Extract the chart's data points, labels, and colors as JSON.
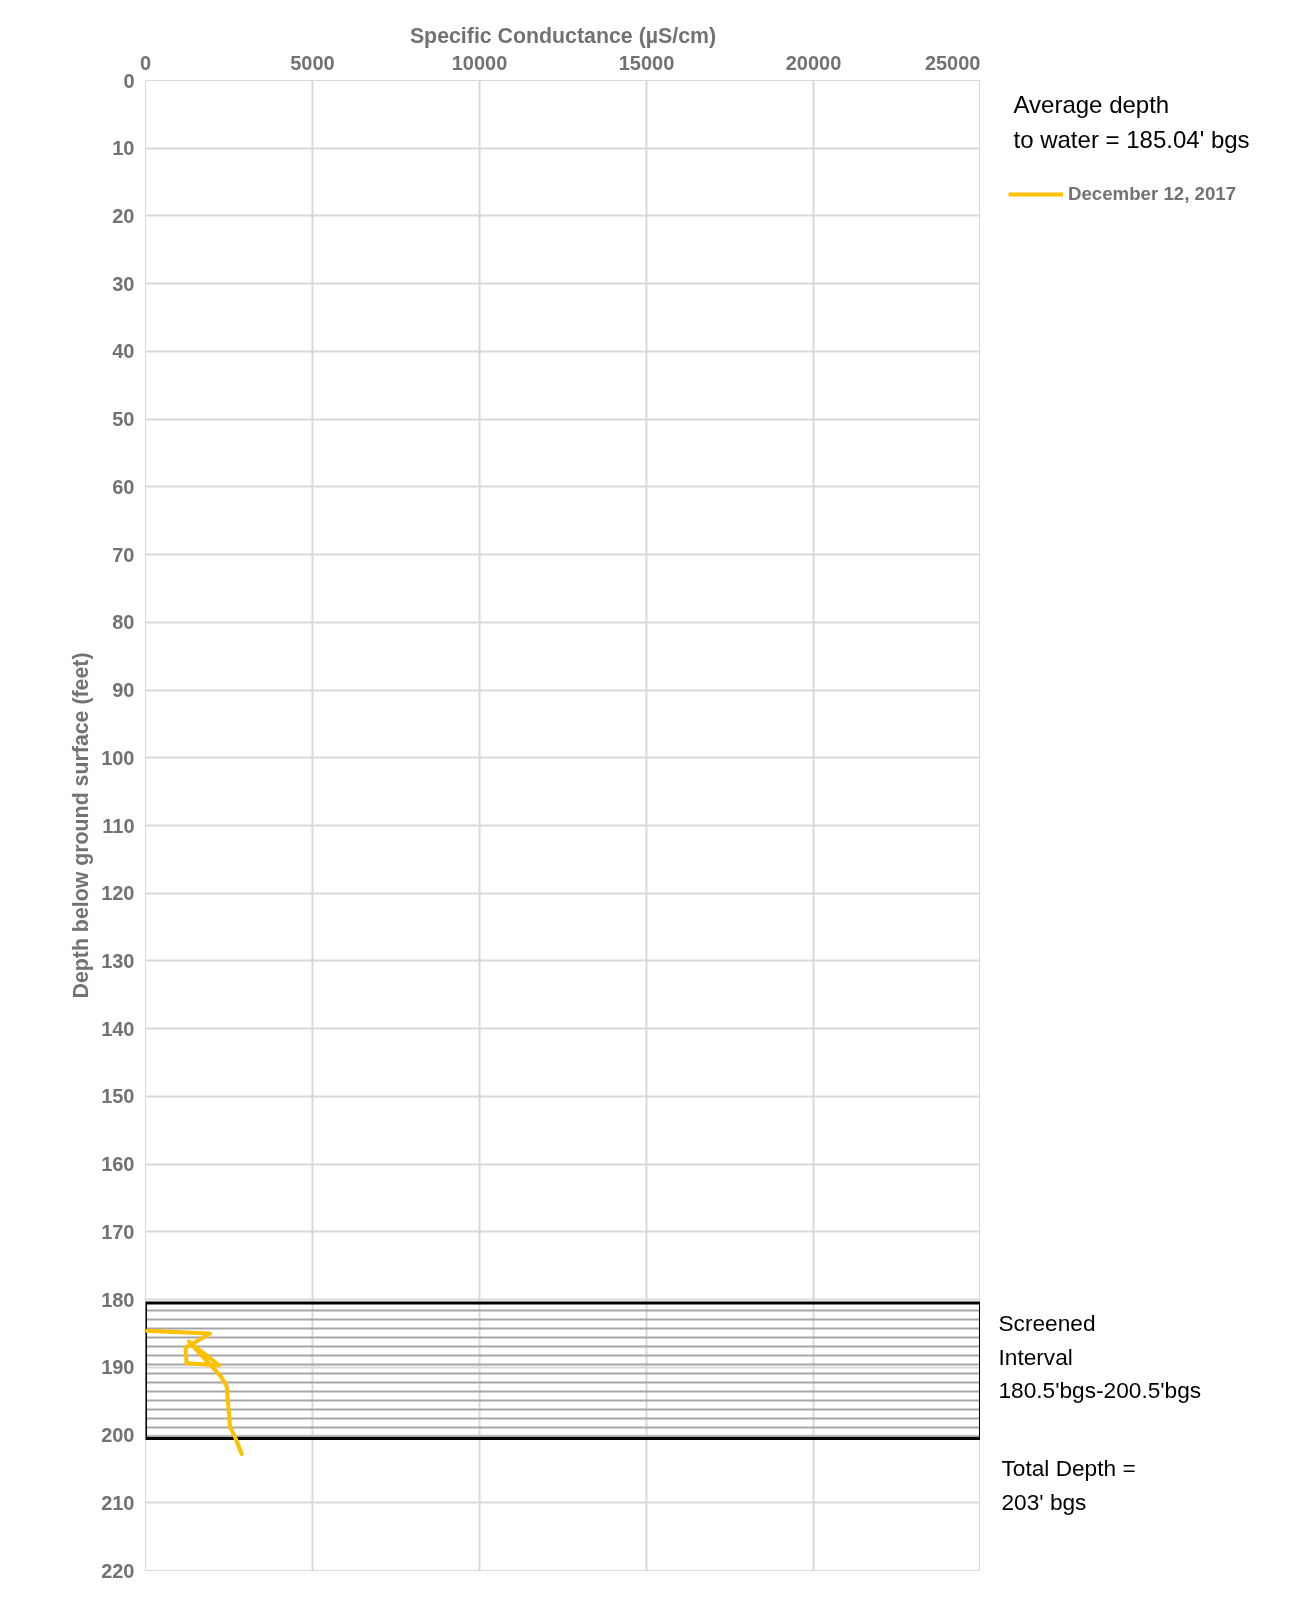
{
  "chart_data": {
    "type": "line",
    "xlabel": "Specific Conductance (µS/cm)",
    "ylabel": "Depth below ground surface (feet)",
    "xlim": [
      0,
      25000
    ],
    "xticks": [
      0,
      5000,
      10000,
      15000,
      20000,
      25000
    ],
    "ylim": [
      220,
      0
    ],
    "yticks": [
      0,
      10,
      20,
      30,
      40,
      50,
      60,
      70,
      80,
      90,
      100,
      110,
      120,
      130,
      140,
      150,
      160,
      170,
      180,
      190,
      200,
      210,
      220
    ],
    "grid": true,
    "legend": "top right",
    "line_style": "solid",
    "series": [
      {
        "name": "December 12, 2017",
        "color": "#ffc000",
        "x": [
          0,
          1930,
          1200,
          1230,
          2200,
          1300,
          2250,
          2430,
          2480,
          2530,
          2680,
          2880
        ],
        "values": [
          184.6,
          185.0,
          187.1,
          189.4,
          189.7,
          186.2,
          191.3,
          192.8,
          195.7,
          198.8,
          200.3,
          202.8
        ]
      }
    ],
    "bands": [
      {
        "axis": "y",
        "from": 180.5,
        "to": 200.5,
        "label": "Screened\nInterval\n180.5'bgs-200.5'bgs",
        "color": "#000000"
      }
    ],
    "annotations": [
      "Average depth\nto water = 185.04' bgs",
      "Total Depth =\n203' bgs"
    ]
  }
}
